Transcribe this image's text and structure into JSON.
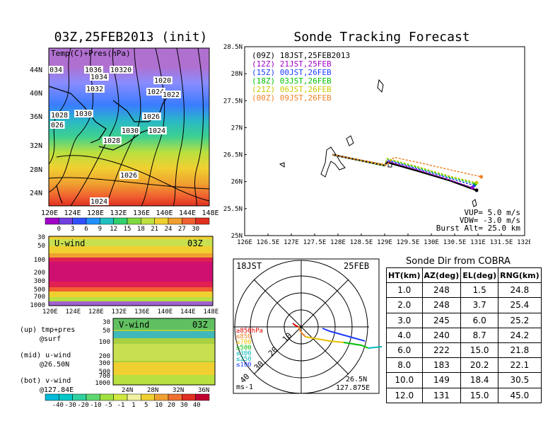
{
  "init_title": "03Z,25FEB2013 (init)",
  "map_panel": {
    "label": "Temp(C)+Pres(hPa)",
    "x_ticks": [
      "120E",
      "124E",
      "128E",
      "132E",
      "136E",
      "140E",
      "144E",
      "148E"
    ],
    "y_ticks": [
      "44N",
      "40N",
      "36N",
      "32N",
      "28N",
      "24N"
    ],
    "isobar_labels": [
      {
        "text": "034"
      },
      {
        "text": "1036"
      },
      {
        "text": "10320"
      },
      {
        "text": "1034"
      },
      {
        "text": "1032"
      },
      {
        "text": "1020"
      },
      {
        "text": "1024"
      },
      {
        "text": "1022"
      },
      {
        "text": "1030"
      },
      {
        "text": "1028"
      },
      {
        "text": "026"
      },
      {
        "text": "1026"
      },
      {
        "text": "1024"
      },
      {
        "text": "1030"
      },
      {
        "text": "1028"
      },
      {
        "text": "1026"
      },
      {
        "text": "1024"
      }
    ],
    "colorbar_ticks": [
      "0",
      "3",
      "6",
      "9",
      "12",
      "15",
      "18",
      "21",
      "24",
      "27",
      "30"
    ]
  },
  "uwind_panel": {
    "label": "U-wind",
    "time": "03Z",
    "y_ticks": [
      "30",
      "50",
      "100",
      "200",
      "300",
      "500",
      "700",
      "1000"
    ],
    "x_ticks": [
      "120E",
      "124E",
      "128E",
      "132E",
      "136E",
      "140E",
      "144E",
      "148E"
    ]
  },
  "vwind_panel": {
    "label": "V-wind",
    "time": "03Z",
    "y_ticks": [
      "30",
      "50",
      "100",
      "200",
      "300",
      "500",
      "700",
      "1000"
    ],
    "x_ticks": [
      "24N",
      "28N",
      "32N",
      "36N"
    ],
    "colorbar_ticks": [
      "-40",
      "-30",
      "-20",
      "-10",
      "-5",
      "-1",
      "1",
      "5",
      "10",
      "20",
      "30",
      "40"
    ]
  },
  "legend_notes": [
    {
      "line1": "(up) tmp+pres",
      "line2": "@surf"
    },
    {
      "line1": "(mid) u-wind",
      "line2": "@26.50N"
    },
    {
      "line1": "(bot) v-wind",
      "line2": "@127.84E"
    }
  ],
  "forecast": {
    "title": "Sonde Tracking Forecast",
    "legend": [
      {
        "text": "(09Z)  18JST,25FEB2013",
        "color": "#000000"
      },
      {
        "text": "(12Z)  21JST,25FEB",
        "color": "#a000c8"
      },
      {
        "text": "(15Z)  00JST,26FEB",
        "color": "#1e3cff"
      },
      {
        "text": "(18Z)  03JST,26FEB",
        "color": "#00c000"
      },
      {
        "text": "(21Z)  06JST,26FEB",
        "color": "#c8c800"
      },
      {
        "text": "(00Z)  09JST,26FEB",
        "color": "#f08228"
      }
    ],
    "params": [
      "VUP=  5.0  m/s",
      "VDW= -3.0  m/s",
      "Burst Alt=  25.0  km"
    ]
  },
  "polar": {
    "time_label": "18JST",
    "date_label": "25FEB",
    "pressure_legend": [
      {
        "text": "≥850hPa",
        "color": "#e00000"
      },
      {
        "text": "≤850",
        "color": "#f08228"
      },
      {
        "text": "≤700",
        "color": "#e8c000"
      },
      {
        "text": "≤500",
        "color": "#00c000"
      },
      {
        "text": "≤300",
        "color": "#00b8b8"
      },
      {
        "text": "≤250",
        "color": "#00b8b8"
      },
      {
        "text": "≤100",
        "color": "#1e3cff"
      }
    ],
    "ring_labels": [
      "10",
      "20",
      "30",
      "40"
    ],
    "unit": "ms-1",
    "lat_label": "26.5N",
    "lon_label": "127.875E"
  },
  "sonde_table": {
    "title": "Sonde Dir from COBRA",
    "headers": [
      "HT(km)",
      "AZ(deg)",
      "EL(deg)",
      "RNG(km)"
    ],
    "rows": [
      [
        "1.0",
        "248",
        "1.5",
        "24.8"
      ],
      [
        "2.0",
        "248",
        "3.7",
        "25.4"
      ],
      [
        "3.0",
        "245",
        "6.0",
        "25.2"
      ],
      [
        "4.0",
        "240",
        "8.7",
        "24.2"
      ],
      [
        "6.0",
        "222",
        "15.0",
        "21.8"
      ],
      [
        "8.0",
        "183",
        "20.2",
        "22.1"
      ],
      [
        "10.0",
        "149",
        "18.4",
        "30.5"
      ],
      [
        "12.0",
        "131",
        "15.0",
        "45.0"
      ]
    ]
  },
  "chart_data": [
    {
      "type": "line",
      "title": "Sonde Tracking Forecast",
      "xlim": [
        126,
        132
      ],
      "ylim": [
        25,
        28.5
      ],
      "x_ticks": [
        "126E",
        "126.5E",
        "127E",
        "127.5E",
        "128E",
        "128.5E",
        "129E",
        "129.5E",
        "130E",
        "130.5E",
        "131E",
        "131.5E",
        "132E"
      ],
      "y_ticks": [
        "25N",
        "25.5N",
        "26N",
        "26.5N",
        "27N",
        "27.5N",
        "28N",
        "28.5N"
      ],
      "series": [
        {
          "name": "(09Z)  18JST,25FEB2013",
          "color": "#000000",
          "x": [
            127.88,
            129.0,
            129.05,
            129.7,
            130.4,
            130.97
          ],
          "y": [
            26.5,
            26.3,
            26.36,
            26.2,
            26.02,
            25.84
          ]
        },
        {
          "name": "(12Z)  21JST,25FEB",
          "color": "#a000c8",
          "x": [
            127.88,
            129.0,
            129.05,
            129.7,
            130.4,
            130.88
          ],
          "y": [
            26.5,
            26.3,
            26.38,
            26.22,
            26.03,
            25.89
          ]
        },
        {
          "name": "(15Z)  00JST,26FEB",
          "color": "#1e3cff",
          "x": [
            127.88,
            129.0,
            129.05,
            129.7,
            130.4,
            130.92
          ],
          "y": [
            26.5,
            26.3,
            26.4,
            26.24,
            26.06,
            25.93
          ]
        },
        {
          "name": "(18Z)  03JST,26FEB",
          "color": "#00c000",
          "x": [
            127.88,
            129.0,
            129.05,
            129.7,
            130.4,
            130.95
          ],
          "y": [
            26.5,
            26.3,
            26.42,
            26.26,
            26.08,
            25.96
          ]
        },
        {
          "name": "(21Z)  06JST,26FEB",
          "color": "#c8c800",
          "x": [
            127.88,
            129.0,
            129.05,
            129.7,
            130.4,
            130.97
          ],
          "y": [
            26.5,
            26.3,
            26.43,
            26.28,
            26.1,
            25.98
          ]
        },
        {
          "name": "(00Z)  09JST,26FEB",
          "color": "#f08228",
          "x": [
            127.88,
            129.05,
            129.2,
            129.8,
            130.5,
            131.07
          ],
          "y": [
            26.5,
            26.31,
            26.45,
            26.34,
            26.2,
            26.09
          ]
        }
      ]
    },
    {
      "type": "table",
      "title": "Sonde Dir from COBRA",
      "columns": [
        "HT(km)",
        "AZ(deg)",
        "EL(deg)",
        "RNG(km)"
      ],
      "rows": [
        [
          1.0,
          248,
          1.5,
          24.8
        ],
        [
          2.0,
          248,
          3.7,
          25.4
        ],
        [
          3.0,
          245,
          6.0,
          25.2
        ],
        [
          4.0,
          240,
          8.7,
          24.2
        ],
        [
          6.0,
          222,
          15.0,
          21.8
        ],
        [
          8.0,
          183,
          20.2,
          22.1
        ],
        [
          10.0,
          149,
          18.4,
          30.5
        ],
        [
          12.0,
          131,
          15.0,
          45.0
        ]
      ]
    }
  ]
}
